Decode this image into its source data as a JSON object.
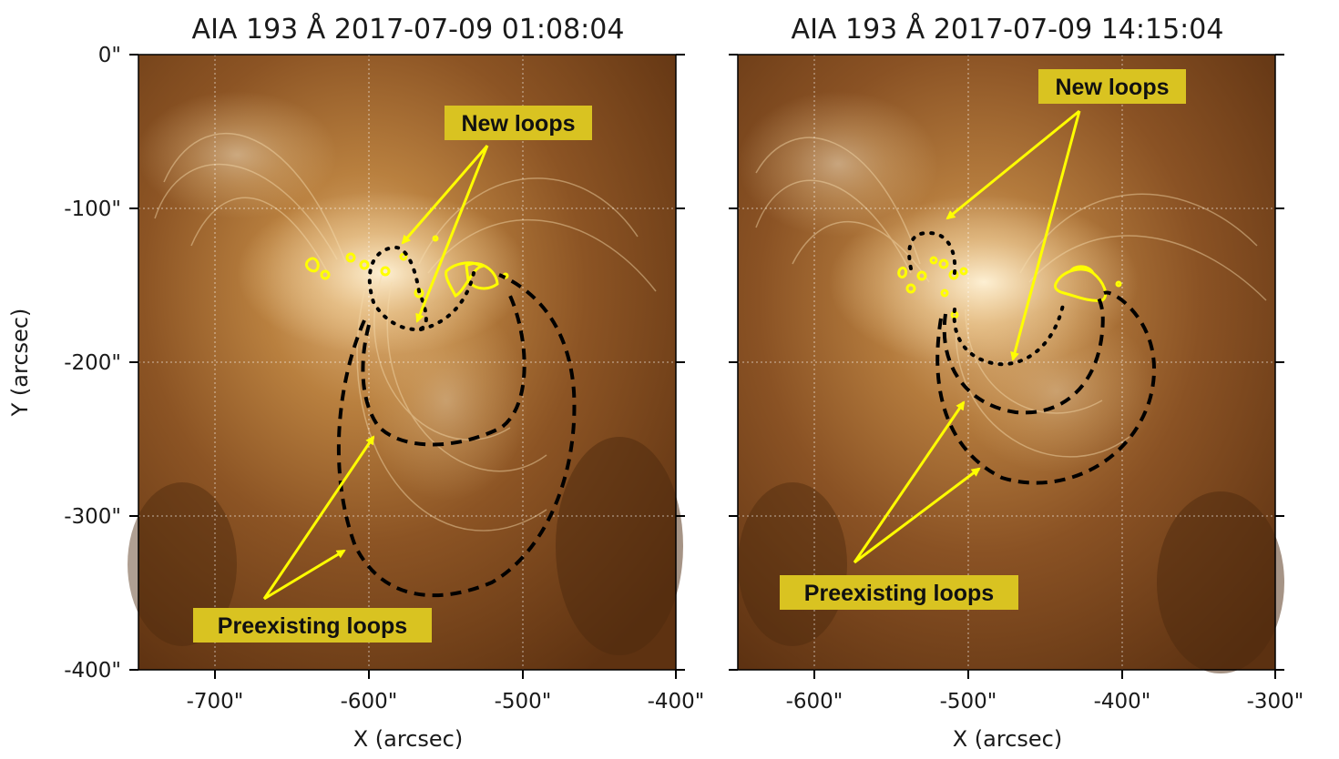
{
  "figure": {
    "colors": {
      "loop_tint": "#f2cf96",
      "background": "#6b3a13",
      "overlay": "#ffff00",
      "label_bg": "#d9c321"
    },
    "panels": [
      {
        "title": "AIA 193 Å 2017-07-09 01:08:04",
        "x_ticks": [
          "-700\"",
          "-600\"",
          "-500\"",
          "-400\""
        ],
        "y_ticks": [
          "0\"",
          "-100\"",
          "-200\"",
          "-300\"",
          "-400\""
        ],
        "xlabel": "X (arcsec)",
        "ylabel": "Y (arcsec)",
        "annotations": {
          "new_loops": "New loops",
          "preexisting_loops": "Preexisting loops"
        }
      },
      {
        "title": "AIA 193 Å 2017-07-09 14:15:04",
        "x_ticks": [
          "-600\"",
          "-500\"",
          "-400\"",
          "-300\""
        ],
        "xlabel": "X (arcsec)",
        "annotations": {
          "new_loops": "New loops",
          "preexisting_loops": "Preexisting loops"
        }
      }
    ]
  }
}
